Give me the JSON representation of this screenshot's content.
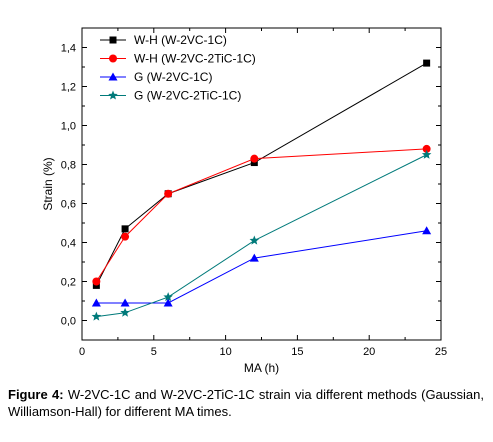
{
  "caption": {
    "label": "Figure 4:",
    "text": "W-2VC-1C and W-2VC-2TiC-1C strain via different methods (Gaussian, Williamson-Hall) for different MA times."
  },
  "chart_data": {
    "type": "line",
    "title": "",
    "xlabel": "MA (h)",
    "ylabel": "Strain (%)",
    "xlim": [
      0,
      25
    ],
    "ylim": [
      -0.1,
      1.5
    ],
    "xticks": [
      0,
      5,
      10,
      15,
      20,
      25
    ],
    "yticks": [
      0.0,
      0.2,
      0.4,
      0.6,
      0.8,
      1.0,
      1.2,
      1.4
    ],
    "ytick_labels": [
      "0,0",
      "0,2",
      "0,4",
      "0,6",
      "0,8",
      "1,0",
      "1,2",
      "1,4"
    ],
    "grid": false,
    "legend_position": "top-left",
    "series": [
      {
        "name": "W-H (W-2VC-1C)",
        "marker": "square",
        "color": "#000000",
        "x": [
          1,
          3,
          6,
          12,
          24
        ],
        "y": [
          0.18,
          0.47,
          0.65,
          0.81,
          1.32
        ]
      },
      {
        "name": "W-H (W-2VC-2TiC-1C)",
        "marker": "circle",
        "color": "#ff0000",
        "x": [
          1,
          3,
          6,
          12,
          24
        ],
        "y": [
          0.2,
          0.43,
          0.65,
          0.83,
          0.88
        ]
      },
      {
        "name": "G (W-2VC-1C)",
        "marker": "triangle",
        "color": "#0000ff",
        "x": [
          1,
          3,
          6,
          12,
          24
        ],
        "y": [
          0.09,
          0.09,
          0.09,
          0.32,
          0.46
        ]
      },
      {
        "name": "G (W-2VC-2TiC-1C)",
        "marker": "star",
        "color": "#007a7a",
        "x": [
          1,
          3,
          6,
          12,
          24
        ],
        "y": [
          0.02,
          0.04,
          0.12,
          0.41,
          0.85
        ]
      }
    ]
  }
}
